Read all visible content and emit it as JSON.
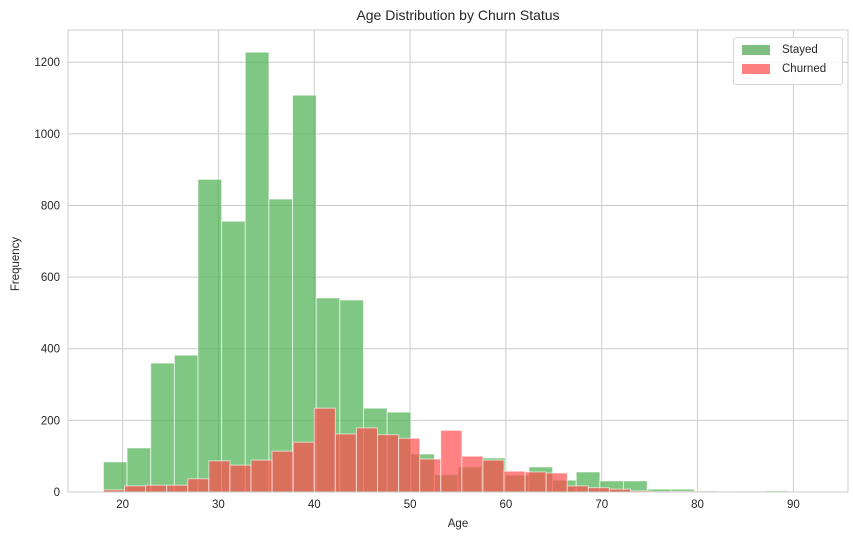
{
  "chart_data": {
    "type": "bar",
    "title": "Age Distribution by Churn Status",
    "xlabel": "Age",
    "ylabel": "Frequency",
    "xlim": [
      14.3,
      95.7
    ],
    "ylim": [
      0,
      1290
    ],
    "xticks": [
      20,
      30,
      40,
      50,
      60,
      70,
      80,
      90
    ],
    "yticks": [
      0,
      200,
      400,
      600,
      800,
      1000,
      1200
    ],
    "grid": true,
    "legend_position": "upper right",
    "series": [
      {
        "name": "Stayed",
        "color": "#4caf50",
        "alpha": 0.7,
        "bin_start": 18,
        "bin_width": 2.467,
        "values": [
          84,
          123,
          360,
          382,
          873,
          756,
          1228,
          818,
          1108,
          542,
          536,
          234,
          223,
          106,
          48,
          70,
          95,
          47,
          70,
          33,
          56,
          31,
          31,
          8,
          8,
          3,
          2,
          2,
          3,
          1
        ]
      },
      {
        "name": "Churned",
        "color": "#ff4c4c",
        "alpha": 0.7,
        "bin_start": 18,
        "bin_width": 2.2,
        "values": [
          6,
          17,
          19,
          19,
          37,
          87,
          75,
          89,
          114,
          139,
          234,
          162,
          179,
          160,
          150,
          92,
          172,
          100,
          89,
          58,
          56,
          53,
          17,
          12,
          8,
          3,
          1,
          2,
          2,
          1
        ]
      }
    ]
  },
  "legend": {
    "items": [
      {
        "label": "Stayed",
        "color": "#80bf80"
      },
      {
        "label": "Churned",
        "color": "#ff8080"
      }
    ]
  }
}
